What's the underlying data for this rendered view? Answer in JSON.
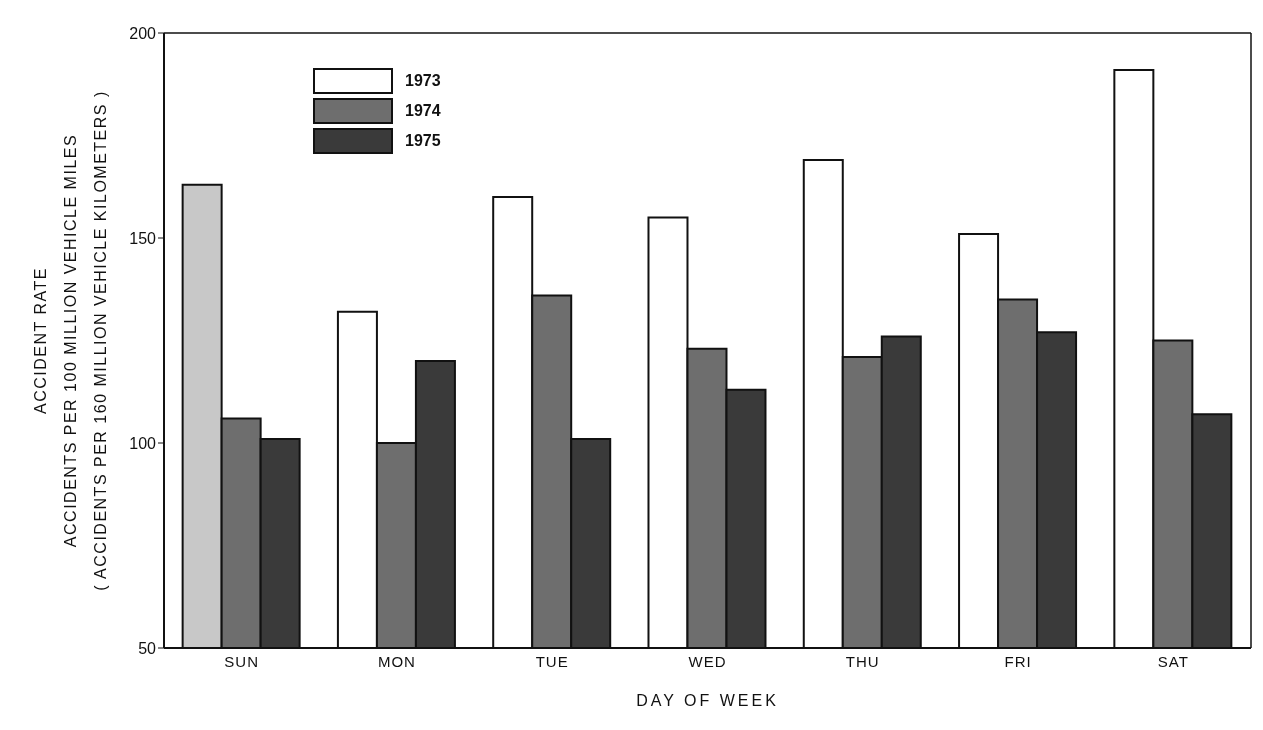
{
  "chart_data": {
    "type": "bar",
    "xlabel": "DAY OF WEEK",
    "ylabel": "ACCIDENT RATE\nACCIDENTS PER 100 MILLION VEHICLE MILES\n( ACCIDENTS PER 160 MILLION VEHICLE KILOMETERS )",
    "categories": [
      "SUN",
      "MON",
      "TUE",
      "WED",
      "THU",
      "FRI",
      "SAT"
    ],
    "series": [
      {
        "name": "1973",
        "color": "#ffffff",
        "colors": [
          "#c8c8c8",
          "#ffffff",
          "#ffffff",
          "#ffffff",
          "#ffffff",
          "#ffffff",
          "#ffffff"
        ],
        "values": [
          163,
          132,
          160,
          155,
          169,
          151,
          191
        ]
      },
      {
        "name": "1974",
        "color": "#6e6e6e",
        "values": [
          106,
          100,
          136,
          123,
          121,
          135,
          125
        ]
      },
      {
        "name": "1975",
        "color": "#3a3a3a",
        "values": [
          101,
          120,
          101,
          113,
          126,
          127,
          107
        ]
      }
    ],
    "ylim": [
      50,
      200
    ],
    "yticks": [
      50,
      100,
      150,
      200
    ],
    "legend": "top left"
  }
}
